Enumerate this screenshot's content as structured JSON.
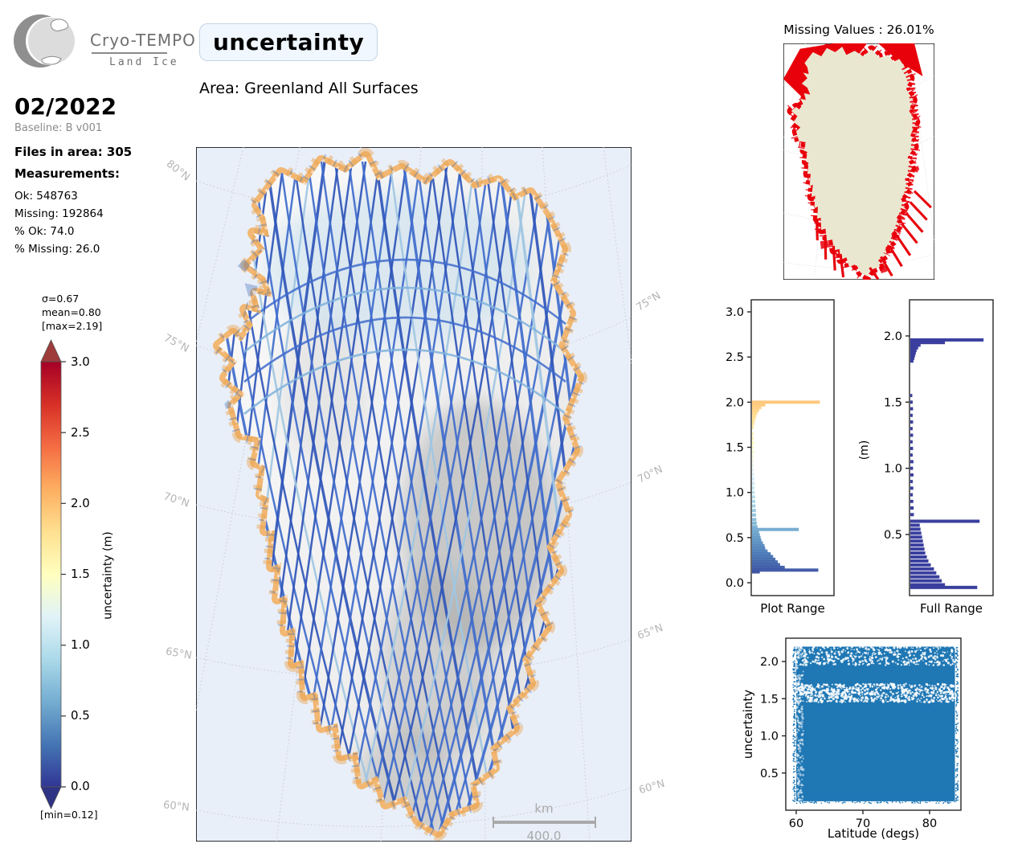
{
  "header": {
    "logo_title": "Cryo-TEMPO",
    "logo_subtitle": "Land Ice",
    "title": "uncertainty",
    "area_label": "Area: Greenland All Surfaces"
  },
  "sidebar": {
    "date": "02/2022",
    "baseline": "Baseline: B v001",
    "files_label": "Files in area: 305",
    "measurements_label": "Measurements:",
    "stats": [
      "Ok: 548763",
      "Missing: 192864",
      "% Ok: 74.0",
      "% Missing: 26.0"
    ]
  },
  "colorbar": {
    "sigma": "σ=0.67",
    "mean": "mean=0.80",
    "max": "[max=2.19]",
    "min": "[min=0.12]",
    "label": "uncertainty (m)",
    "ticks": [
      "3.0",
      "2.5",
      "2.0",
      "1.5",
      "1.0",
      "0.5",
      "0.0"
    ],
    "stops": [
      "#313695",
      "#4575b4",
      "#74add1",
      "#abd9e9",
      "#e0f3f8",
      "#ffffbf",
      "#fee090",
      "#fdae61",
      "#f46d43",
      "#d73027",
      "#a50026"
    ]
  },
  "map": {
    "lat_labels_left": [
      "80°N",
      "75°N",
      "70°N",
      "65°N",
      "60°N"
    ],
    "lat_labels_right": [
      "75°N",
      "70°N",
      "65°N",
      "60°N"
    ],
    "scalebar": {
      "unit": "km",
      "value": "400.0"
    },
    "land_color": "#f2f2f2",
    "margin_color": "#f1b36b",
    "track_color": "#3a62c4",
    "ocean_color": "#e9eff9"
  },
  "missing_map": {
    "title": "Missing Values : 26.01%",
    "land_color": "#eae7d1",
    "missing_color": "#e8000b"
  },
  "chart_data": [
    {
      "id": "plot_range",
      "type": "bar",
      "orientation": "horizontal",
      "title": "Plot Range",
      "ylim": [
        -0.05,
        3.18
      ],
      "yticks": [
        0.0,
        0.5,
        1.0,
        1.5,
        2.0,
        2.5,
        3.0
      ],
      "colormap": "RdYlBu_r",
      "bins": [
        [
          2.0,
          0.87
        ],
        [
          1.97,
          0.17
        ],
        [
          1.94,
          0.12
        ],
        [
          1.91,
          0.09
        ],
        [
          1.88,
          0.07
        ],
        [
          1.85,
          0.055
        ],
        [
          1.82,
          0.045
        ],
        [
          1.79,
          0.035
        ],
        [
          1.76,
          0.03
        ],
        [
          1.72,
          0.022
        ],
        [
          1.65,
          0.018
        ],
        [
          1.6,
          0.02
        ],
        [
          1.55,
          0.028
        ],
        [
          1.5,
          0.022
        ],
        [
          1.45,
          0.028
        ],
        [
          1.4,
          0.02
        ],
        [
          1.35,
          0.018
        ],
        [
          1.3,
          0.02
        ],
        [
          1.25,
          0.022
        ],
        [
          1.2,
          0.025
        ],
        [
          1.15,
          0.03
        ],
        [
          1.1,
          0.035
        ],
        [
          1.05,
          0.03
        ],
        [
          1.0,
          0.035
        ],
        [
          0.95,
          0.04
        ],
        [
          0.9,
          0.042
        ],
        [
          0.85,
          0.045
        ],
        [
          0.8,
          0.05
        ],
        [
          0.75,
          0.052
        ],
        [
          0.7,
          0.055
        ],
        [
          0.66,
          0.06
        ],
        [
          0.62,
          0.07
        ],
        [
          0.59,
          0.6
        ],
        [
          0.56,
          0.09
        ],
        [
          0.53,
          0.1
        ],
        [
          0.5,
          0.11
        ],
        [
          0.47,
          0.12
        ],
        [
          0.44,
          0.14
        ],
        [
          0.41,
          0.16
        ],
        [
          0.38,
          0.17
        ],
        [
          0.35,
          0.2
        ],
        [
          0.32,
          0.24
        ],
        [
          0.29,
          0.27
        ],
        [
          0.26,
          0.3
        ],
        [
          0.23,
          0.33
        ],
        [
          0.2,
          0.36
        ],
        [
          0.17,
          0.42
        ],
        [
          0.14,
          0.85
        ],
        [
          0.12,
          0.1
        ]
      ]
    },
    {
      "id": "full_range",
      "type": "bar",
      "orientation": "horizontal",
      "title": "Full Range",
      "ylabel": "(m)",
      "ylim": [
        0.03,
        2.28
      ],
      "yticks": [
        0.5,
        1.0,
        1.5,
        2.0
      ],
      "bar_color": "#3a3f9e",
      "bins": [
        [
          1.97,
          0.93
        ],
        [
          1.95,
          0.44
        ],
        [
          1.93,
          0.13
        ],
        [
          1.91,
          0.1
        ],
        [
          1.89,
          0.08
        ],
        [
          1.87,
          0.07
        ],
        [
          1.85,
          0.06
        ],
        [
          1.83,
          0.05
        ],
        [
          1.81,
          0.04
        ],
        [
          1.55,
          0.025
        ],
        [
          1.5,
          0.03
        ],
        [
          1.45,
          0.035
        ],
        [
          1.4,
          0.03
        ],
        [
          1.35,
          0.035
        ],
        [
          1.3,
          0.03
        ],
        [
          1.25,
          0.035
        ],
        [
          1.2,
          0.03
        ],
        [
          1.15,
          0.035
        ],
        [
          1.1,
          0.03
        ],
        [
          1.05,
          0.04
        ],
        [
          1.0,
          0.035
        ],
        [
          0.95,
          0.04
        ],
        [
          0.9,
          0.032
        ],
        [
          0.85,
          0.038
        ],
        [
          0.8,
          0.032
        ],
        [
          0.75,
          0.038
        ],
        [
          0.7,
          0.042
        ],
        [
          0.65,
          0.045
        ],
        [
          0.6,
          0.88
        ],
        [
          0.57,
          0.12
        ],
        [
          0.54,
          0.13
        ],
        [
          0.51,
          0.14
        ],
        [
          0.48,
          0.15
        ],
        [
          0.45,
          0.16
        ],
        [
          0.42,
          0.17
        ],
        [
          0.39,
          0.18
        ],
        [
          0.36,
          0.19
        ],
        [
          0.33,
          0.21
        ],
        [
          0.3,
          0.23
        ],
        [
          0.27,
          0.26
        ],
        [
          0.24,
          0.3
        ],
        [
          0.21,
          0.33
        ],
        [
          0.18,
          0.37
        ],
        [
          0.15,
          0.4
        ],
        [
          0.12,
          0.44
        ],
        [
          0.1,
          0.85
        ]
      ]
    },
    {
      "id": "latitude_scatter",
      "type": "scatter",
      "xlabel": "Latitude (degs)",
      "ylabel": "uncertainty",
      "xlim": [
        58.4,
        84.7
      ],
      "ylim": [
        0.0,
        2.31
      ],
      "xticks": [
        60,
        70,
        80
      ],
      "yticks": [
        0.5,
        1.0,
        1.5,
        2.0
      ],
      "x_range": [
        60.0,
        83.8
      ],
      "y_range": [
        0.12,
        2.2
      ],
      "point_color": "#1f77b4",
      "sparse_bands": [
        [
          1.45,
          1.7
        ],
        [
          1.95,
          2.2
        ]
      ]
    }
  ]
}
